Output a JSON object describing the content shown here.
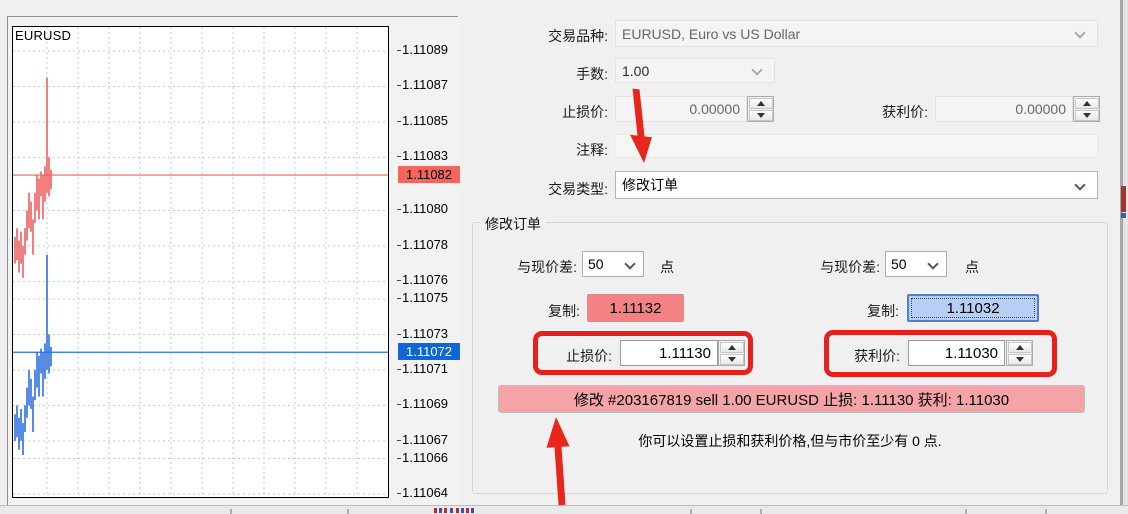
{
  "chart_data": {
    "type": "bar",
    "symbol": "EURUSD",
    "title": "EURUSD",
    "ask_line_price": 1.11082,
    "bid_line_price": 1.11072,
    "ask_tag": "1.11082",
    "bid_tag": "1.11072",
    "spread_points": 10,
    "y_axis_top_price": 1.11089,
    "y_axis_labels": [
      "1.11089",
      "1.11087",
      "1.11085",
      "1.11083",
      "1.11080",
      "1.11078",
      "1.11076",
      "1.11075",
      "1.11073",
      "1.11071",
      "1.11069",
      "1.11067",
      "1.11066",
      "1.11064"
    ],
    "bars_ask_high_low": [
      [
        1.110785,
        1.11077
      ],
      [
        1.11079,
        1.110772
      ],
      [
        1.110783,
        1.110765
      ],
      [
        1.110788,
        1.11077
      ],
      [
        1.11078,
        1.110762
      ],
      [
        1.11079,
        1.110775
      ],
      [
        1.1108,
        1.110783
      ],
      [
        1.11081,
        1.11079
      ],
      [
        1.110805,
        1.110788
      ],
      [
        1.110795,
        1.110775
      ],
      [
        1.11081,
        1.110793
      ],
      [
        1.11082,
        1.1108
      ],
      [
        1.110818,
        1.110795
      ],
      [
        1.110822,
        1.110808
      ],
      [
        1.11082,
        1.110795
      ],
      [
        1.110825,
        1.110805
      ],
      [
        1.110875,
        1.11081
      ],
      [
        1.11083,
        1.110808
      ],
      [
        1.110823,
        1.110812
      ]
    ],
    "colors": {
      "ask": "#ef5f5f",
      "bid": "#2b6fe0",
      "grid": "#c9c9c9",
      "ask_tag_bg": "#f4655c",
      "bid_tag_bg": "#0f66d6"
    }
  },
  "form": {
    "rows": {
      "symbol": {
        "label": "交易品种:",
        "value": "EURUSD, Euro vs US Dollar"
      },
      "volume": {
        "label": "手数:",
        "value": "1.00"
      },
      "stop_loss_top": {
        "label": "止损价:",
        "value": "0.00000"
      },
      "take_profit_top": {
        "label": "获利价:",
        "value": "0.00000"
      },
      "comment": {
        "label": "注释:",
        "value": ""
      },
      "trade_type": {
        "label": "交易类型:",
        "value": "修改订单"
      }
    },
    "modify_group": {
      "legend": "修改订单",
      "sl_points": {
        "label": "与现价差:",
        "value": "50",
        "unit": "点"
      },
      "tp_points": {
        "label": "与现价差:",
        "value": "50",
        "unit": "点"
      },
      "sl_copy": {
        "label": "复制:",
        "value": "1.11132"
      },
      "tp_copy": {
        "label": "复制:",
        "value": "1.11032"
      },
      "sl_price": {
        "label": "止损价:",
        "value": "1.11130"
      },
      "tp_price": {
        "label": "获利价:",
        "value": "1.11030"
      },
      "modify_button": "修改 #203167819 sell 1.00 EURUSD 止损: 1.11130 获利: 1.11030",
      "hint": "你可以设置止损和获利价格,但与市价至少有 0 点."
    }
  }
}
